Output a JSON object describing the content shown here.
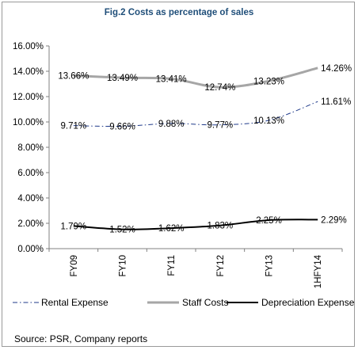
{
  "chart_data": {
    "type": "line",
    "title": "Fig.2 Costs as percentage of sales",
    "categories": [
      "FY09",
      "FY10",
      "FY11",
      "FY12",
      "FY13",
      "1HFY14"
    ],
    "ylim": [
      0,
      16
    ],
    "yticks": [
      "0.00%",
      "2.00%",
      "4.00%",
      "6.00%",
      "8.00%",
      "10.00%",
      "12.00%",
      "14.00%",
      "16.00%"
    ],
    "grid": false,
    "legend_position": "bottom",
    "series": [
      {
        "name": "Rental Expense",
        "values": [
          9.71,
          9.66,
          9.88,
          9.77,
          10.13,
          11.61
        ],
        "labels": [
          "9.71%",
          "9.66%",
          "9.88%",
          "9.77%",
          "10.13%",
          "11.61%"
        ],
        "color": "#1f3a8a",
        "style": "dash-dot"
      },
      {
        "name": "Staff Costs",
        "values": [
          13.66,
          13.49,
          13.41,
          12.74,
          13.23,
          14.26
        ],
        "labels": [
          "13.66%",
          "13.49%",
          "13.41%",
          "12.74%",
          "13.23%",
          "14.26%"
        ],
        "color": "#a6a6a6",
        "style": "solid-thick"
      },
      {
        "name": "Depreciation Expense",
        "values": [
          1.79,
          1.52,
          1.62,
          1.83,
          2.25,
          2.29
        ],
        "labels": [
          "1.79%",
          "1.52%",
          "1.62%",
          "1.83%",
          "2.25%",
          "2.29%"
        ],
        "color": "#000000",
        "style": "solid"
      }
    ]
  },
  "source": "Source: PSR, Company reports"
}
